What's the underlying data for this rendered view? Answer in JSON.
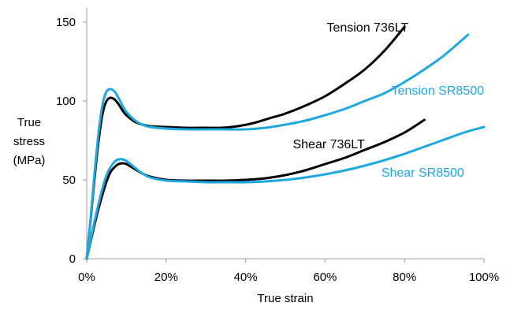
{
  "chart_data": {
    "type": "line",
    "title": "",
    "xlabel": "True strain",
    "ylabel_lines": [
      "True",
      "stress",
      "(MPa)"
    ],
    "xlim": [
      0,
      100
    ],
    "ylim": [
      0,
      150
    ],
    "x_ticks": [
      "0%",
      "20%",
      "40%",
      "60%",
      "80%",
      "100%"
    ],
    "x_tick_values": [
      0,
      20,
      40,
      60,
      80,
      100
    ],
    "y_ticks": [
      "0",
      "50",
      "100",
      "150"
    ],
    "y_tick_values": [
      0,
      50,
      100,
      150
    ],
    "grid": false,
    "legend": "none (series labeled directly on the plot)",
    "series": [
      {
        "name": "Tension 736LT",
        "color": "#000000",
        "points": [
          [
            0,
            0
          ],
          [
            1,
            25
          ],
          [
            2,
            52
          ],
          [
            3,
            75
          ],
          [
            4,
            92
          ],
          [
            5,
            100
          ],
          [
            6,
            102
          ],
          [
            7,
            101
          ],
          [
            8,
            98
          ],
          [
            9,
            94
          ],
          [
            10,
            91
          ],
          [
            12,
            87
          ],
          [
            14,
            85
          ],
          [
            16,
            84
          ],
          [
            20,
            83.5
          ],
          [
            25,
            83
          ],
          [
            30,
            83
          ],
          [
            34,
            83
          ],
          [
            38,
            84
          ],
          [
            42,
            86
          ],
          [
            46,
            89
          ],
          [
            50,
            92
          ],
          [
            55,
            97
          ],
          [
            60,
            103
          ],
          [
            65,
            111
          ],
          [
            70,
            120
          ],
          [
            75,
            132
          ],
          [
            80,
            147
          ]
        ]
      },
      {
        "name": "Tension SR8500",
        "color": "#1ea8e0",
        "points": [
          [
            0,
            0
          ],
          [
            1,
            26
          ],
          [
            2,
            55
          ],
          [
            3,
            80
          ],
          [
            4,
            98
          ],
          [
            5,
            106
          ],
          [
            6,
            107.5
          ],
          [
            7,
            106
          ],
          [
            8,
            102
          ],
          [
            9,
            97
          ],
          [
            10,
            93
          ],
          [
            12,
            88
          ],
          [
            14,
            85
          ],
          [
            16,
            83.5
          ],
          [
            20,
            82.5
          ],
          [
            25,
            82
          ],
          [
            30,
            82
          ],
          [
            35,
            82
          ],
          [
            40,
            82
          ],
          [
            45,
            83
          ],
          [
            50,
            85
          ],
          [
            55,
            87.5
          ],
          [
            60,
            91
          ],
          [
            65,
            95
          ],
          [
            70,
            100
          ],
          [
            75,
            105
          ],
          [
            80,
            112
          ],
          [
            85,
            120
          ],
          [
            90,
            129
          ],
          [
            96,
            142
          ]
        ]
      },
      {
        "name": "Shear 736LT",
        "color": "#000000",
        "points": [
          [
            0,
            0
          ],
          [
            1,
            11
          ],
          [
            2,
            22
          ],
          [
            3,
            32
          ],
          [
            4,
            41
          ],
          [
            5,
            49
          ],
          [
            6,
            55
          ],
          [
            7,
            58
          ],
          [
            8,
            60
          ],
          [
            9,
            60.5
          ],
          [
            10,
            60
          ],
          [
            12,
            57
          ],
          [
            14,
            54
          ],
          [
            16,
            52
          ],
          [
            20,
            50
          ],
          [
            25,
            49.5
          ],
          [
            30,
            49.5
          ],
          [
            35,
            49.5
          ],
          [
            40,
            50
          ],
          [
            45,
            51
          ],
          [
            50,
            53
          ],
          [
            55,
            56
          ],
          [
            60,
            60
          ],
          [
            65,
            64
          ],
          [
            70,
            69
          ],
          [
            75,
            74
          ],
          [
            80,
            80
          ],
          [
            85,
            88
          ]
        ]
      },
      {
        "name": "Shear SR8500",
        "color": "#1ea8e0",
        "points": [
          [
            0,
            0
          ],
          [
            1,
            12
          ],
          [
            2,
            24
          ],
          [
            3,
            35
          ],
          [
            4,
            45
          ],
          [
            5,
            53
          ],
          [
            6,
            58
          ],
          [
            7,
            61.5
          ],
          [
            8,
            63
          ],
          [
            9,
            63
          ],
          [
            10,
            62
          ],
          [
            12,
            58
          ],
          [
            14,
            54
          ],
          [
            16,
            51.5
          ],
          [
            20,
            49.5
          ],
          [
            25,
            49
          ],
          [
            30,
            48.5
          ],
          [
            35,
            48.5
          ],
          [
            40,
            48.5
          ],
          [
            45,
            49
          ],
          [
            50,
            50
          ],
          [
            55,
            51.5
          ],
          [
            60,
            53.5
          ],
          [
            65,
            56
          ],
          [
            70,
            59
          ],
          [
            75,
            62.5
          ],
          [
            80,
            66.5
          ],
          [
            85,
            71
          ],
          [
            90,
            75.5
          ],
          [
            95,
            80
          ],
          [
            100,
            83.5
          ]
        ]
      }
    ],
    "annotations": [
      {
        "text": "Tension 736LT",
        "color": "#000000",
        "x": 81,
        "y": 147
      },
      {
        "text": "Tension SR8500",
        "color": "#1ea8e0",
        "x": 100,
        "y": 107
      },
      {
        "text": "Shear 736LT",
        "color": "#000000",
        "x": 70,
        "y": 73
      },
      {
        "text": "Shear SR8500",
        "color": "#1ea8e0",
        "x": 95,
        "y": 55
      }
    ]
  }
}
